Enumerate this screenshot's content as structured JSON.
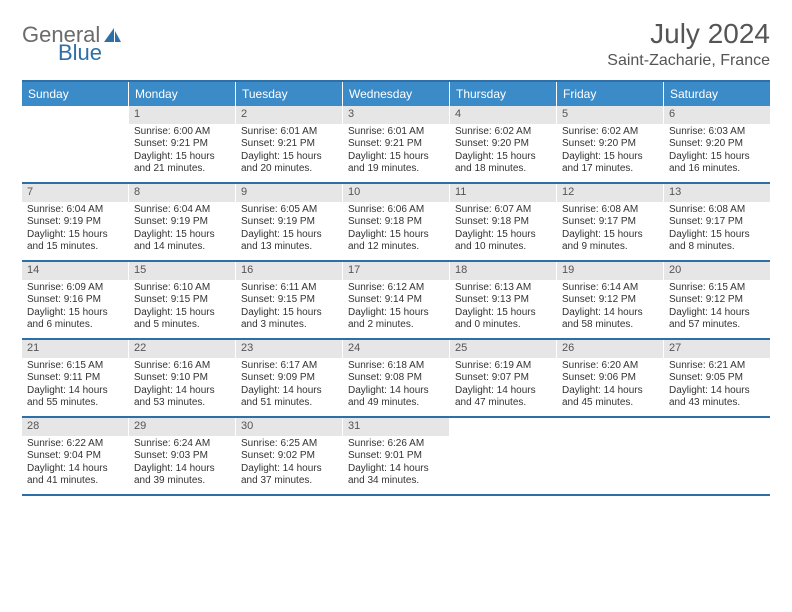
{
  "brand": {
    "general": "General",
    "blue": "Blue"
  },
  "title": "July 2024",
  "location": "Saint-Zacharie, France",
  "colors": {
    "header_bg": "#3b8bc9",
    "border": "#2f6fa8",
    "daynum_bg": "#e6e6e6",
    "text": "#333333",
    "title_text": "#555555"
  },
  "weekdays": [
    "Sunday",
    "Monday",
    "Tuesday",
    "Wednesday",
    "Thursday",
    "Friday",
    "Saturday"
  ],
  "start_offset": 1,
  "days": [
    {
      "n": 1,
      "sunrise": "6:00 AM",
      "sunset": "9:21 PM",
      "dl": "15 hours and 21 minutes."
    },
    {
      "n": 2,
      "sunrise": "6:01 AM",
      "sunset": "9:21 PM",
      "dl": "15 hours and 20 minutes."
    },
    {
      "n": 3,
      "sunrise": "6:01 AM",
      "sunset": "9:21 PM",
      "dl": "15 hours and 19 minutes."
    },
    {
      "n": 4,
      "sunrise": "6:02 AM",
      "sunset": "9:20 PM",
      "dl": "15 hours and 18 minutes."
    },
    {
      "n": 5,
      "sunrise": "6:02 AM",
      "sunset": "9:20 PM",
      "dl": "15 hours and 17 minutes."
    },
    {
      "n": 6,
      "sunrise": "6:03 AM",
      "sunset": "9:20 PM",
      "dl": "15 hours and 16 minutes."
    },
    {
      "n": 7,
      "sunrise": "6:04 AM",
      "sunset": "9:19 PM",
      "dl": "15 hours and 15 minutes."
    },
    {
      "n": 8,
      "sunrise": "6:04 AM",
      "sunset": "9:19 PM",
      "dl": "15 hours and 14 minutes."
    },
    {
      "n": 9,
      "sunrise": "6:05 AM",
      "sunset": "9:19 PM",
      "dl": "15 hours and 13 minutes."
    },
    {
      "n": 10,
      "sunrise": "6:06 AM",
      "sunset": "9:18 PM",
      "dl": "15 hours and 12 minutes."
    },
    {
      "n": 11,
      "sunrise": "6:07 AM",
      "sunset": "9:18 PM",
      "dl": "15 hours and 10 minutes."
    },
    {
      "n": 12,
      "sunrise": "6:08 AM",
      "sunset": "9:17 PM",
      "dl": "15 hours and 9 minutes."
    },
    {
      "n": 13,
      "sunrise": "6:08 AM",
      "sunset": "9:17 PM",
      "dl": "15 hours and 8 minutes."
    },
    {
      "n": 14,
      "sunrise": "6:09 AM",
      "sunset": "9:16 PM",
      "dl": "15 hours and 6 minutes."
    },
    {
      "n": 15,
      "sunrise": "6:10 AM",
      "sunset": "9:15 PM",
      "dl": "15 hours and 5 minutes."
    },
    {
      "n": 16,
      "sunrise": "6:11 AM",
      "sunset": "9:15 PM",
      "dl": "15 hours and 3 minutes."
    },
    {
      "n": 17,
      "sunrise": "6:12 AM",
      "sunset": "9:14 PM",
      "dl": "15 hours and 2 minutes."
    },
    {
      "n": 18,
      "sunrise": "6:13 AM",
      "sunset": "9:13 PM",
      "dl": "15 hours and 0 minutes."
    },
    {
      "n": 19,
      "sunrise": "6:14 AM",
      "sunset": "9:12 PM",
      "dl": "14 hours and 58 minutes."
    },
    {
      "n": 20,
      "sunrise": "6:15 AM",
      "sunset": "9:12 PM",
      "dl": "14 hours and 57 minutes."
    },
    {
      "n": 21,
      "sunrise": "6:15 AM",
      "sunset": "9:11 PM",
      "dl": "14 hours and 55 minutes."
    },
    {
      "n": 22,
      "sunrise": "6:16 AM",
      "sunset": "9:10 PM",
      "dl": "14 hours and 53 minutes."
    },
    {
      "n": 23,
      "sunrise": "6:17 AM",
      "sunset": "9:09 PM",
      "dl": "14 hours and 51 minutes."
    },
    {
      "n": 24,
      "sunrise": "6:18 AM",
      "sunset": "9:08 PM",
      "dl": "14 hours and 49 minutes."
    },
    {
      "n": 25,
      "sunrise": "6:19 AM",
      "sunset": "9:07 PM",
      "dl": "14 hours and 47 minutes."
    },
    {
      "n": 26,
      "sunrise": "6:20 AM",
      "sunset": "9:06 PM",
      "dl": "14 hours and 45 minutes."
    },
    {
      "n": 27,
      "sunrise": "6:21 AM",
      "sunset": "9:05 PM",
      "dl": "14 hours and 43 minutes."
    },
    {
      "n": 28,
      "sunrise": "6:22 AM",
      "sunset": "9:04 PM",
      "dl": "14 hours and 41 minutes."
    },
    {
      "n": 29,
      "sunrise": "6:24 AM",
      "sunset": "9:03 PM",
      "dl": "14 hours and 39 minutes."
    },
    {
      "n": 30,
      "sunrise": "6:25 AM",
      "sunset": "9:02 PM",
      "dl": "14 hours and 37 minutes."
    },
    {
      "n": 31,
      "sunrise": "6:26 AM",
      "sunset": "9:01 PM",
      "dl": "14 hours and 34 minutes."
    }
  ],
  "labels": {
    "sunrise": "Sunrise:",
    "sunset": "Sunset:",
    "daylight": "Daylight:"
  }
}
